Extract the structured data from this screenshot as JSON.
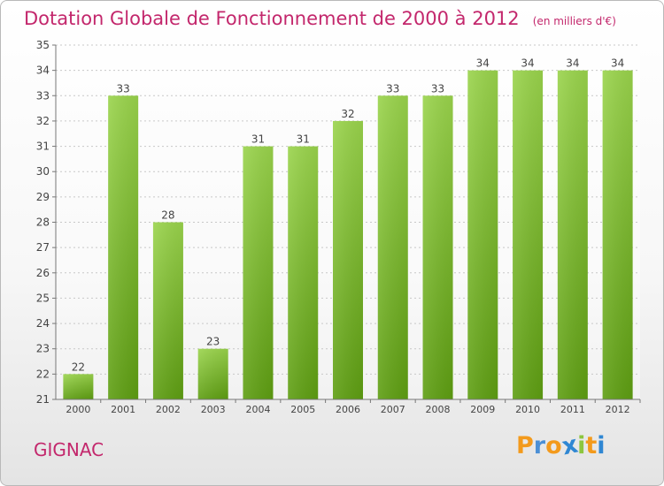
{
  "chart_data": {
    "type": "bar",
    "title": "Dotation Globale de Fonctionnement de 2000 à 2012",
    "subtitle": "(en milliers d'€)",
    "categories": [
      "2000",
      "2001",
      "2002",
      "2003",
      "2004",
      "2005",
      "2006",
      "2007",
      "2008",
      "2009",
      "2010",
      "2011",
      "2012"
    ],
    "values": [
      22,
      33,
      28,
      23,
      31,
      31,
      32,
      33,
      33,
      34,
      34,
      34,
      34
    ],
    "ylim": [
      21,
      35
    ],
    "yticks": [
      21,
      22,
      23,
      24,
      25,
      26,
      27,
      28,
      29,
      30,
      31,
      32,
      33,
      34,
      35
    ],
    "xlabel": "",
    "ylabel": "",
    "grid": true,
    "bar_color": "#7dbb2c"
  },
  "footer": {
    "commune": "GIGNAC",
    "logo_letters": [
      "P",
      "r",
      "o",
      "x",
      "i",
      "t",
      "i"
    ],
    "logo_colors": [
      "#f39a1c",
      "#4b8fd5",
      "#f39a1c",
      "#2f87d3",
      "#8cc63f",
      "#f39a1c",
      "#2f87d3"
    ]
  }
}
